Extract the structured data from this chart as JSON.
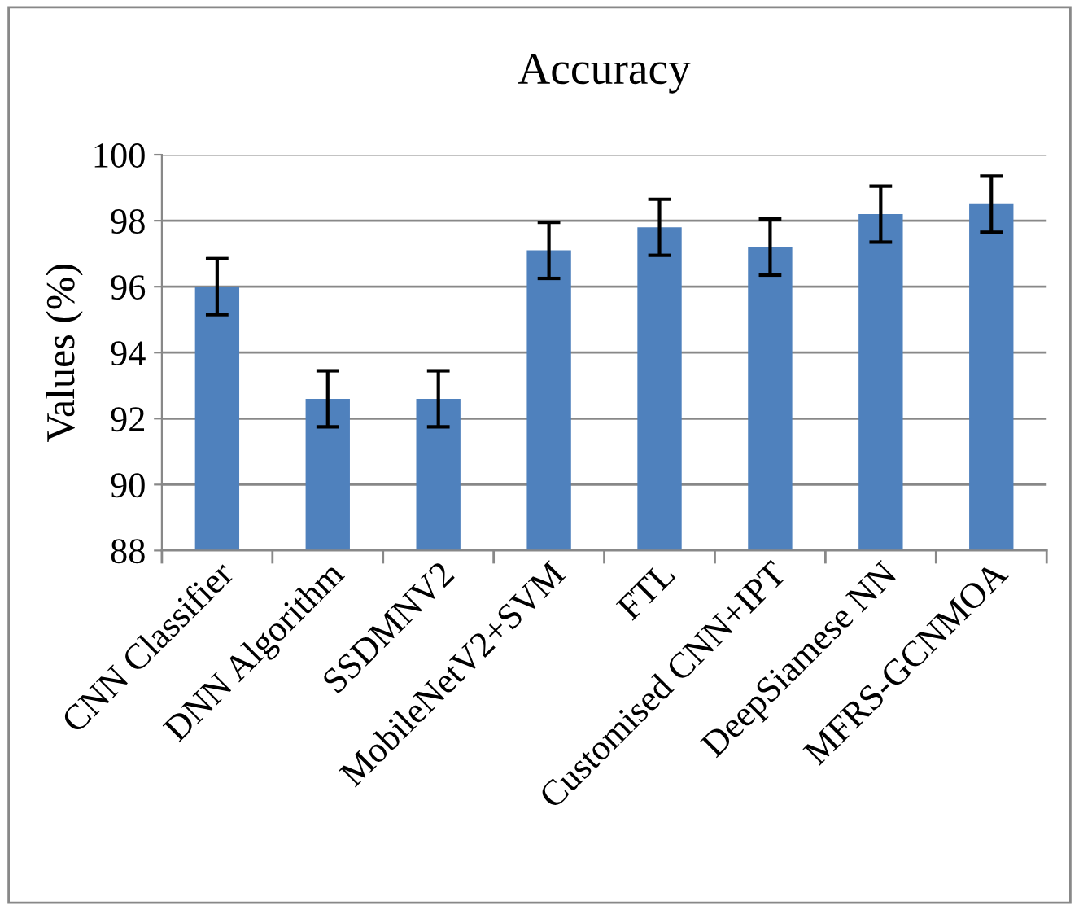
{
  "chart_data": {
    "type": "bar",
    "title": "Accuracy",
    "ylabel": "Values (%)",
    "categories": [
      "CNN Classifier",
      "DNN Algorithm",
      "SSDMNV2",
      "MobileNetV2+SVM",
      "FTL",
      "Customised CNN+IPT",
      "DeepSiamese NN",
      "MFRS-GCNMOA"
    ],
    "values": [
      96.0,
      92.6,
      92.6,
      97.1,
      97.8,
      97.2,
      98.2,
      98.5
    ],
    "errors": [
      0.85,
      0.85,
      0.85,
      0.85,
      0.85,
      0.85,
      0.85,
      0.85
    ],
    "color": "#4f81bd",
    "ylim": [
      88,
      100
    ],
    "yticks": [
      88,
      90,
      92,
      94,
      96,
      98,
      100
    ],
    "grid": "y",
    "legend": false
  }
}
